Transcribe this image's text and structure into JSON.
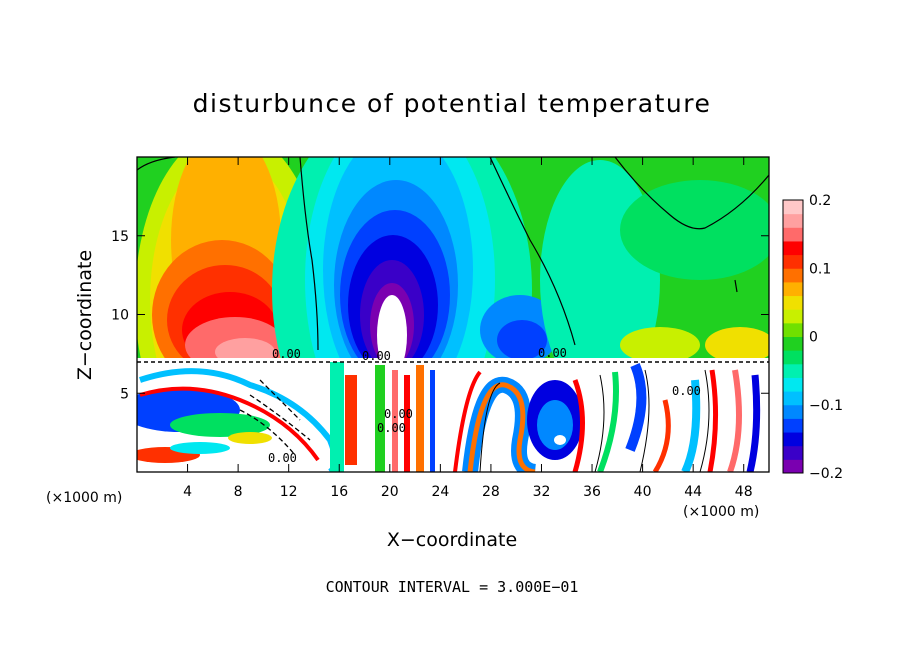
{
  "chart_data": {
    "type": "heatmap",
    "title": "disturbunce of potential temperature",
    "xlabel": "X−coordinate",
    "ylabel": "Z−coordinate",
    "x_unit": "(×1000 m)",
    "y_unit": "(×1000 m)",
    "xlim": [
      0,
      50
    ],
    "ylim": [
      0,
      20
    ],
    "x_ticks": [
      {
        "v": 4,
        "label": "4"
      },
      {
        "v": 8,
        "label": "8"
      },
      {
        "v": 12,
        "label": "12"
      },
      {
        "v": 16,
        "label": "16"
      },
      {
        "v": 20,
        "label": "20"
      },
      {
        "v": 24,
        "label": "24"
      },
      {
        "v": 28,
        "label": "28"
      },
      {
        "v": 32,
        "label": "32"
      },
      {
        "v": 36,
        "label": "36"
      },
      {
        "v": 40,
        "label": "40"
      },
      {
        "v": 44,
        "label": "44"
      },
      {
        "v": 48,
        "label": "48"
      }
    ],
    "y_ticks": [
      {
        "v": 5,
        "label": "5"
      },
      {
        "v": 10,
        "label": "10"
      },
      {
        "v": 15,
        "label": "15"
      }
    ],
    "colorbar": {
      "range": [
        -0.2,
        0.2
      ],
      "ticks": [
        {
          "v": 0.2,
          "label": "0.2"
        },
        {
          "v": 0.1,
          "label": "0.1"
        },
        {
          "v": 0,
          "label": "0"
        },
        {
          "v": -0.1,
          "label": "−0.1"
        },
        {
          "v": -0.2,
          "label": "−0.2"
        }
      ],
      "colors": [
        "#7a00b0",
        "#3a00c8",
        "#0000e0",
        "#0040ff",
        "#0088ff",
        "#00c0ff",
        "#00e8f0",
        "#00f0b0",
        "#00e060",
        "#20d020",
        "#70e000",
        "#c8f000",
        "#f0e000",
        "#ffb000",
        "#ff7000",
        "#ff3000",
        "#ff0000",
        "#ff6a6a",
        "#ffa0a0",
        "#ffc8c8"
      ]
    },
    "contour_labels": [
      "0.00",
      "0.00",
      "0.00",
      "0.00",
      "0.00",
      "0.00",
      "0.00"
    ],
    "footer": "CONTOUR INTERVAL = 3.000E−01",
    "grid": false,
    "legend": "colorbar-right"
  }
}
